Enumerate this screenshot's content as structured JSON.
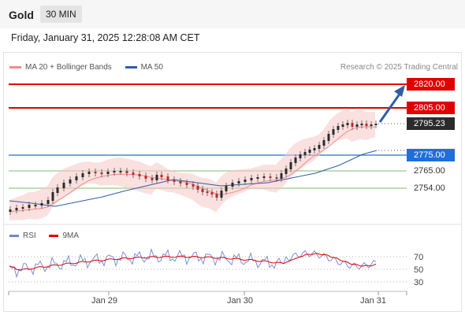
{
  "header": {
    "symbol": "Gold",
    "timeframe": "30 MIN"
  },
  "datetime": "Friday, January 31, 2025 12:28:08 AM CET",
  "legend": {
    "ma20_bb": "MA 20 + Bollinger Bands",
    "ma50": "MA 50",
    "ma20_color": "#f08c8c",
    "ma50_color": "#2f5da6"
  },
  "research": "Research © 2025 Trading Central",
  "levels": {
    "r2": "2820.00",
    "r1": "2805.00",
    "last": "2795.23",
    "s1": "2775.00",
    "s2": "2765.00",
    "s3": "2754.00"
  },
  "rsi_legend": {
    "rsi": "RSI",
    "ma9": "9MA",
    "rsi_color": "#6f86d6",
    "ma9_color": "#e00000"
  },
  "rsi_ticks": [
    "70",
    "50",
    "30"
  ],
  "x_axis": [
    "Jan 29",
    "Jan 30",
    "Jan 31"
  ],
  "colors": {
    "resistance": "#e00000",
    "support_blue": "#1e6fdc",
    "support_green": "#7cbf6a",
    "arrow": "#2f5da6"
  }
}
